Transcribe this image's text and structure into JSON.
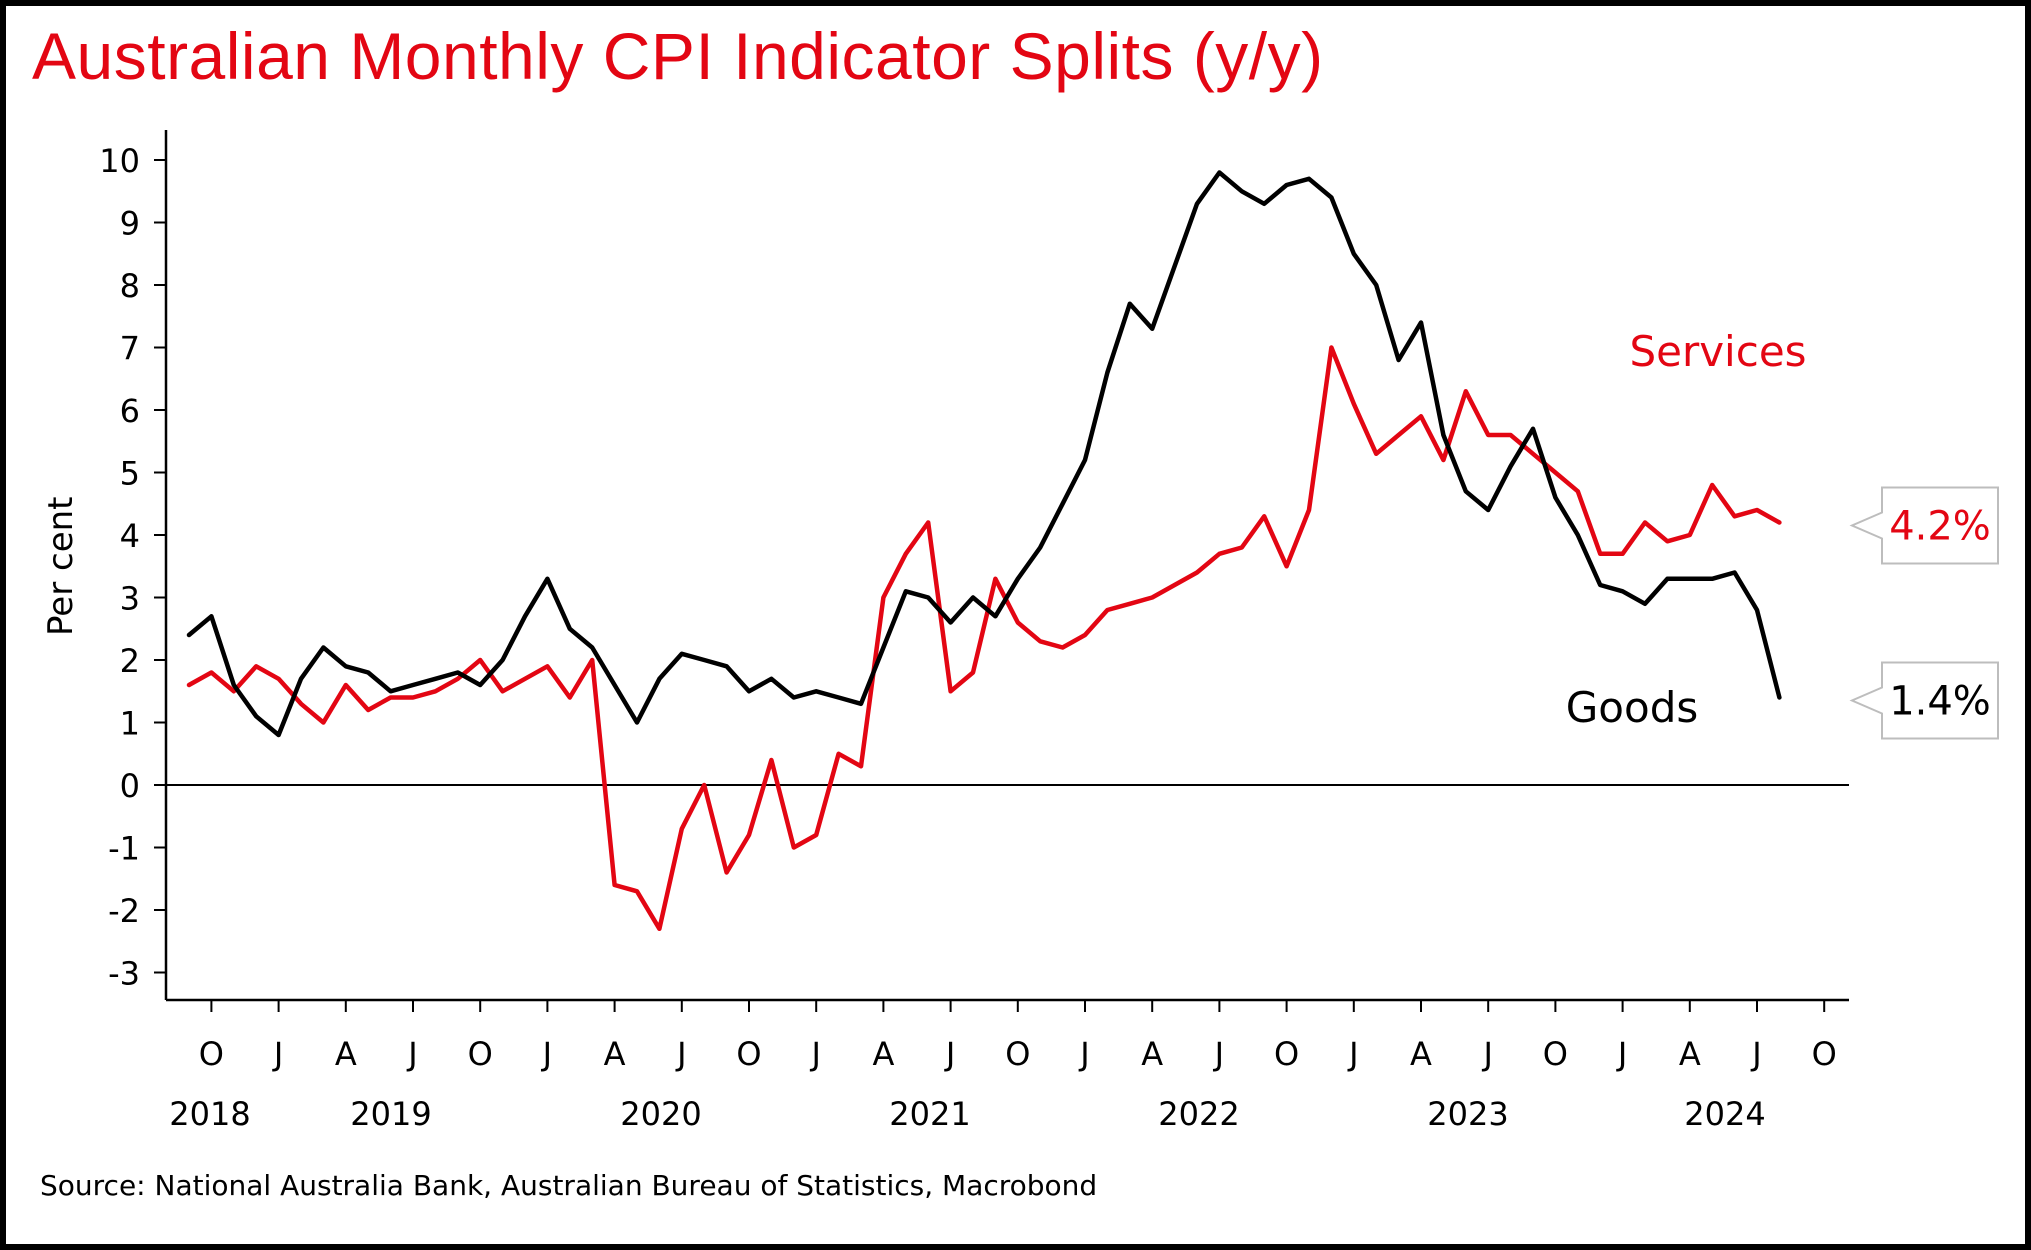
{
  "title": "Australian Monthly CPI Indicator Splits (y/y)",
  "source": "Source: National Australia Bank, Australian Bureau of Statistics, Macrobond",
  "colors": {
    "title": "#e30613",
    "services": "#e30613",
    "goods": "#000000"
  },
  "chart_data": {
    "type": "line",
    "ylabel": "Per cent",
    "xlabel": "",
    "ylim": [
      -3,
      10
    ],
    "yticks": [
      10,
      9,
      8,
      7,
      6,
      5,
      4,
      3,
      2,
      1,
      0,
      -1,
      -2,
      -3
    ],
    "x_start": "2018-09",
    "x_end": "2024-07",
    "month_ticks": [
      "O",
      "J",
      "A",
      "J",
      "O",
      "J",
      "A",
      "J",
      "O",
      "J",
      "A",
      "J",
      "O",
      "J",
      "A",
      "J",
      "O",
      "J",
      "A",
      "J",
      "O",
      "J",
      "A",
      "J",
      "O"
    ],
    "year_labels": [
      "2018",
      "2019",
      "2020",
      "2021",
      "2022",
      "2023",
      "2024"
    ],
    "grid": false,
    "zero_line": true,
    "series": [
      {
        "name": "Services",
        "color": "#e30613",
        "end_label": "4.2%",
        "values": [
          1.6,
          1.8,
          1.5,
          1.9,
          1.7,
          1.3,
          1.0,
          1.6,
          1.2,
          1.4,
          1.4,
          1.5,
          1.7,
          2.0,
          1.5,
          1.7,
          1.9,
          1.4,
          2.0,
          -1.6,
          -1.7,
          -2.3,
          -0.7,
          0.0,
          -1.4,
          -0.8,
          0.4,
          -1.0,
          -0.8,
          0.5,
          0.3,
          3.0,
          3.7,
          4.2,
          1.5,
          1.8,
          3.3,
          2.6,
          2.3,
          2.2,
          2.4,
          2.8,
          2.9,
          3.0,
          3.2,
          3.4,
          3.7,
          3.8,
          4.3,
          3.5,
          4.4,
          7.0,
          6.1,
          5.3,
          5.6,
          5.9,
          5.2,
          6.3,
          5.6,
          5.6,
          5.3,
          5.0,
          4.7,
          3.7,
          3.7,
          4.2,
          3.9,
          4.0,
          4.8,
          4.3,
          4.4,
          4.2
        ]
      },
      {
        "name": "Goods",
        "color": "#000000",
        "end_label": "1.4%",
        "values": [
          2.4,
          2.7,
          1.6,
          1.1,
          0.8,
          1.7,
          2.2,
          1.9,
          1.8,
          1.5,
          1.6,
          1.7,
          1.8,
          1.6,
          2.0,
          2.7,
          3.3,
          2.5,
          2.2,
          1.6,
          1.0,
          1.7,
          2.1,
          2.0,
          1.9,
          1.5,
          1.7,
          1.4,
          1.5,
          1.4,
          1.3,
          2.2,
          3.1,
          3.0,
          2.6,
          3.0,
          2.7,
          3.3,
          3.8,
          4.5,
          5.2,
          6.6,
          7.7,
          7.3,
          8.3,
          9.3,
          9.8,
          9.5,
          9.3,
          9.6,
          9.7,
          9.4,
          8.5,
          8.0,
          6.8,
          7.4,
          5.6,
          4.7,
          4.4,
          5.1,
          5.7,
          4.6,
          4.0,
          3.2,
          3.1,
          2.9,
          3.3,
          3.3,
          3.3,
          3.4,
          2.8,
          1.4
        ]
      }
    ]
  }
}
